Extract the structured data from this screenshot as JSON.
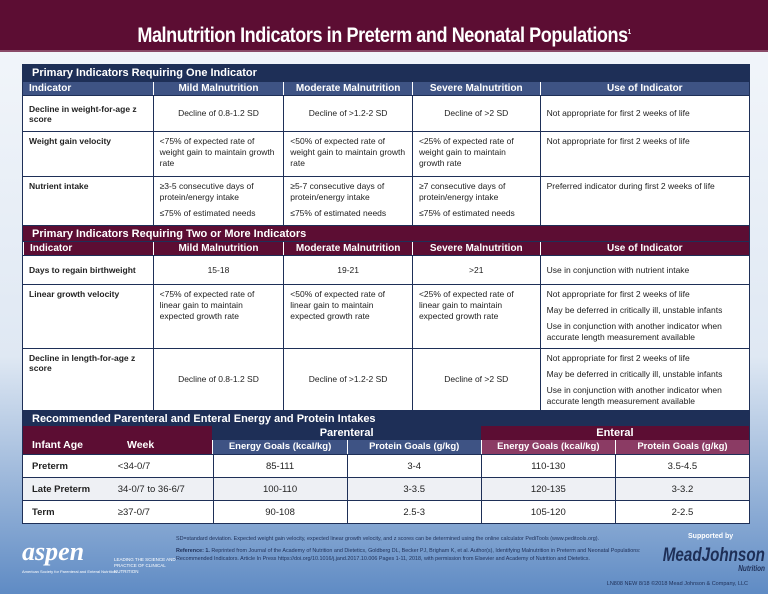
{
  "title": "Malnutrition Indicators in Preterm and Neonatal Populations",
  "title_sup": "1",
  "colors": {
    "maroon": "#5c0d33",
    "navy": "#1e2f57",
    "header_blue": "#3e5384"
  },
  "section1": {
    "title": "Primary Indicators Requiring One Indicator",
    "headers": [
      "Indicator",
      "Mild Malnutrition",
      "Moderate Malnutrition",
      "Severe Malnutrition",
      "Use of Indicator"
    ],
    "rows": [
      {
        "indicator": "Decline in weight-for-age z score",
        "mild": [
          "Decline of 0.8-1.2 SD"
        ],
        "moderate": [
          "Decline of >1.2-2 SD"
        ],
        "severe": [
          "Decline of >2 SD"
        ],
        "use": [
          "Not appropriate for first 2 weeks of life"
        ]
      },
      {
        "indicator": "Weight gain velocity",
        "mild": [
          "<75% of expected rate of weight gain to maintain growth rate"
        ],
        "moderate": [
          "<50% of expected rate of weight gain to maintain growth rate"
        ],
        "severe": [
          "<25% of expected rate of weight gain to maintain growth rate"
        ],
        "use": [
          "Not appropriate for first 2 weeks of life"
        ]
      },
      {
        "indicator": "Nutrient intake",
        "mild": [
          "≥3-5 consecutive days of protein/energy intake",
          "≤75% of estimated needs"
        ],
        "moderate": [
          "≥5-7 consecutive days of protein/energy intake",
          "≤75% of estimated needs"
        ],
        "severe": [
          "≥7 consecutive days of protein/energy intake",
          "≤75% of estimated needs"
        ],
        "use": [
          "Preferred indicator during first 2 weeks of life"
        ]
      }
    ]
  },
  "section2": {
    "title": "Primary Indicators Requiring Two or More Indicators",
    "headers": [
      "Indicator",
      "Mild Malnutrition",
      "Moderate Malnutrition",
      "Severe Malnutrition",
      "Use of Indicator"
    ],
    "rows": [
      {
        "indicator": "Days to regain birthweight",
        "mild": [
          "15-18"
        ],
        "moderate": [
          "19-21"
        ],
        "severe": [
          ">21"
        ],
        "use": [
          "Use in conjunction with nutrient intake"
        ]
      },
      {
        "indicator": "Linear growth velocity",
        "mild": [
          "<75% of expected rate of linear gain to maintain expected growth rate"
        ],
        "moderate": [
          "<50% of expected rate of linear gain to maintain expected growth rate"
        ],
        "severe": [
          "<25% of expected rate of linear gain to maintain expected growth rate"
        ],
        "use": [
          "Not appropriate for first 2 weeks of life",
          "May be deferred in critically ill, unstable infants",
          "Use in conjunction with another indicator when accurate length measurement available"
        ]
      },
      {
        "indicator": "Decline in length-for-age z score",
        "mild": [
          "Decline of 0.8-1.2 SD"
        ],
        "moderate": [
          "Decline of >1.2-2 SD"
        ],
        "severe": [
          "Decline of >2 SD"
        ],
        "use": [
          "Not appropriate for first 2 weeks of life",
          "May be deferred in critically ill, unstable infants",
          "Use in conjunction with another indicator when accurate length measurement available"
        ]
      }
    ]
  },
  "section3": {
    "title": "Recommended Parenteral and Enteral Energy and Protein Intakes",
    "age_header": "Infant Age",
    "week_header": "Week",
    "parenteral": "Parenteral",
    "enteral": "Enteral",
    "sub_headers": [
      "Energy Goals (kcal/kg)",
      "Protein Goals (g/kg)",
      "Energy Goals (kcal/kg)",
      "Protein Goals (g/kg)"
    ],
    "rows": [
      {
        "age": "Preterm",
        "week": "<34-0/7",
        "values": [
          "85-111",
          "3-4",
          "110-130",
          "3.5-4.5"
        ]
      },
      {
        "age": "Late Preterm",
        "week": "34-0/7 to 36-6/7",
        "values": [
          "100-110",
          "3-3.5",
          "120-135",
          "3-3.2"
        ]
      },
      {
        "age": "Term",
        "week": "≥37-0/7",
        "values": [
          "90-108",
          "2.5-3",
          "105-120",
          "2-2.5"
        ]
      }
    ]
  },
  "footer": {
    "note": "SD=standard deviation. Expected weight gain velocity, expected linear growth velocity, and z scores can be determined using the online calculator PediTools (www.peditools.org).",
    "reference_label": "Reference: 1.",
    "reference": "Reprinted from Journal of the Academy of Nutrition and Dietetics, Goldberg DL, Becker PJ, Brigham K, et al. Author(s), Identifying Malnutrition in Preterm and Neonatal Populations: Recommended Indicators. Article In Press https://doi.org/10.1016/j.jand.2017.10.006 Pages 1-11, 2018, with permission from Elsevier and Academy of Nutrition and Dietetics.",
    "aspen_logo": "aspen",
    "aspen_tagline": "LEADING THE SCIENCE AND PRACTICE OF CLINICAL NUTRITION",
    "aspen_sub": "American Society for Parenteral and Enteral Nutrition",
    "supported_by": "Supported by",
    "mj_logo": "MeadJohnson",
    "mj_sub": "Nutrition",
    "copyright": "LN808 NEW 8/18  ©2018 Mead Johnson & Company, LLC"
  }
}
